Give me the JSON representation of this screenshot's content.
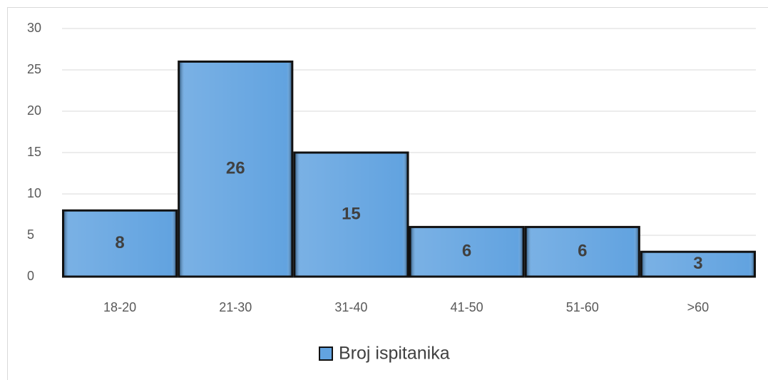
{
  "chart_data": {
    "type": "bar",
    "categories": [
      "18-20",
      "21-30",
      "31-40",
      "41-50",
      "51-60",
      ">60"
    ],
    "series": [
      {
        "name": "Broj ispitanika",
        "color": "#62a3e0",
        "values": [
          8,
          26,
          15,
          6,
          6,
          3
        ]
      }
    ],
    "ylim": [
      0,
      30
    ],
    "yticks": [
      0,
      5,
      10,
      15,
      20,
      25,
      30
    ],
    "grid": true,
    "legend": "bottom"
  }
}
